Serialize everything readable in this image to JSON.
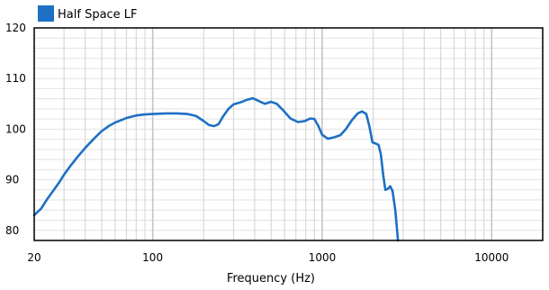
{
  "chart_data": {
    "type": "line",
    "title": "",
    "xlabel": "Frequency (Hz)",
    "ylabel": "",
    "x_scale": "log",
    "xlim": [
      20,
      20000
    ],
    "ylim": [
      78,
      120
    ],
    "x_ticks": [
      {
        "value": 20,
        "label": "20"
      },
      {
        "value": 100,
        "label": "100"
      },
      {
        "value": 1000,
        "label": "1000"
      },
      {
        "value": 10000,
        "label": "10000"
      }
    ],
    "y_ticks": [
      {
        "value": 80,
        "label": "80"
      },
      {
        "value": 90,
        "label": "90"
      },
      {
        "value": 100,
        "label": "100"
      },
      {
        "value": 110,
        "label": "110"
      },
      {
        "value": 120,
        "label": "120"
      }
    ],
    "grid": true,
    "legend_position": "top-left",
    "series": [
      {
        "name": "Half Space LF",
        "color": "#1d70c4",
        "points": [
          [
            20,
            83.0
          ],
          [
            22,
            84.3
          ],
          [
            24,
            86.3
          ],
          [
            26,
            87.9
          ],
          [
            28,
            89.4
          ],
          [
            30,
            91.0
          ],
          [
            33,
            92.9
          ],
          [
            36,
            94.5
          ],
          [
            40,
            96.3
          ],
          [
            45,
            98.1
          ],
          [
            50,
            99.6
          ],
          [
            55,
            100.6
          ],
          [
            60,
            101.3
          ],
          [
            70,
            102.2
          ],
          [
            80,
            102.7
          ],
          [
            90,
            102.9
          ],
          [
            100,
            103.0
          ],
          [
            120,
            103.1
          ],
          [
            140,
            103.1
          ],
          [
            160,
            103.0
          ],
          [
            180,
            102.6
          ],
          [
            200,
            101.6
          ],
          [
            215,
            100.8
          ],
          [
            230,
            100.6
          ],
          [
            245,
            101.0
          ],
          [
            260,
            102.5
          ],
          [
            280,
            104.0
          ],
          [
            300,
            104.9
          ],
          [
            330,
            105.3
          ],
          [
            360,
            105.8
          ],
          [
            390,
            106.1
          ],
          [
            420,
            105.6
          ],
          [
            460,
            105.0
          ],
          [
            500,
            105.4
          ],
          [
            540,
            105.0
          ],
          [
            590,
            103.7
          ],
          [
            650,
            102.1
          ],
          [
            720,
            101.4
          ],
          [
            790,
            101.6
          ],
          [
            850,
            102.1
          ],
          [
            900,
            102.0
          ],
          [
            950,
            100.6
          ],
          [
            1000,
            98.9
          ],
          [
            1080,
            98.1
          ],
          [
            1180,
            98.4
          ],
          [
            1280,
            98.8
          ],
          [
            1380,
            100.0
          ],
          [
            1500,
            101.8
          ],
          [
            1620,
            103.1
          ],
          [
            1720,
            103.5
          ],
          [
            1820,
            103.0
          ],
          [
            1900,
            100.5
          ],
          [
            1980,
            97.4
          ],
          [
            2050,
            97.2
          ],
          [
            2150,
            96.9
          ],
          [
            2220,
            95.0
          ],
          [
            2290,
            91.0
          ],
          [
            2360,
            88.0
          ],
          [
            2440,
            88.2
          ],
          [
            2520,
            88.7
          ],
          [
            2600,
            87.8
          ],
          [
            2700,
            84.0
          ],
          [
            2800,
            78.0
          ]
        ]
      }
    ]
  }
}
